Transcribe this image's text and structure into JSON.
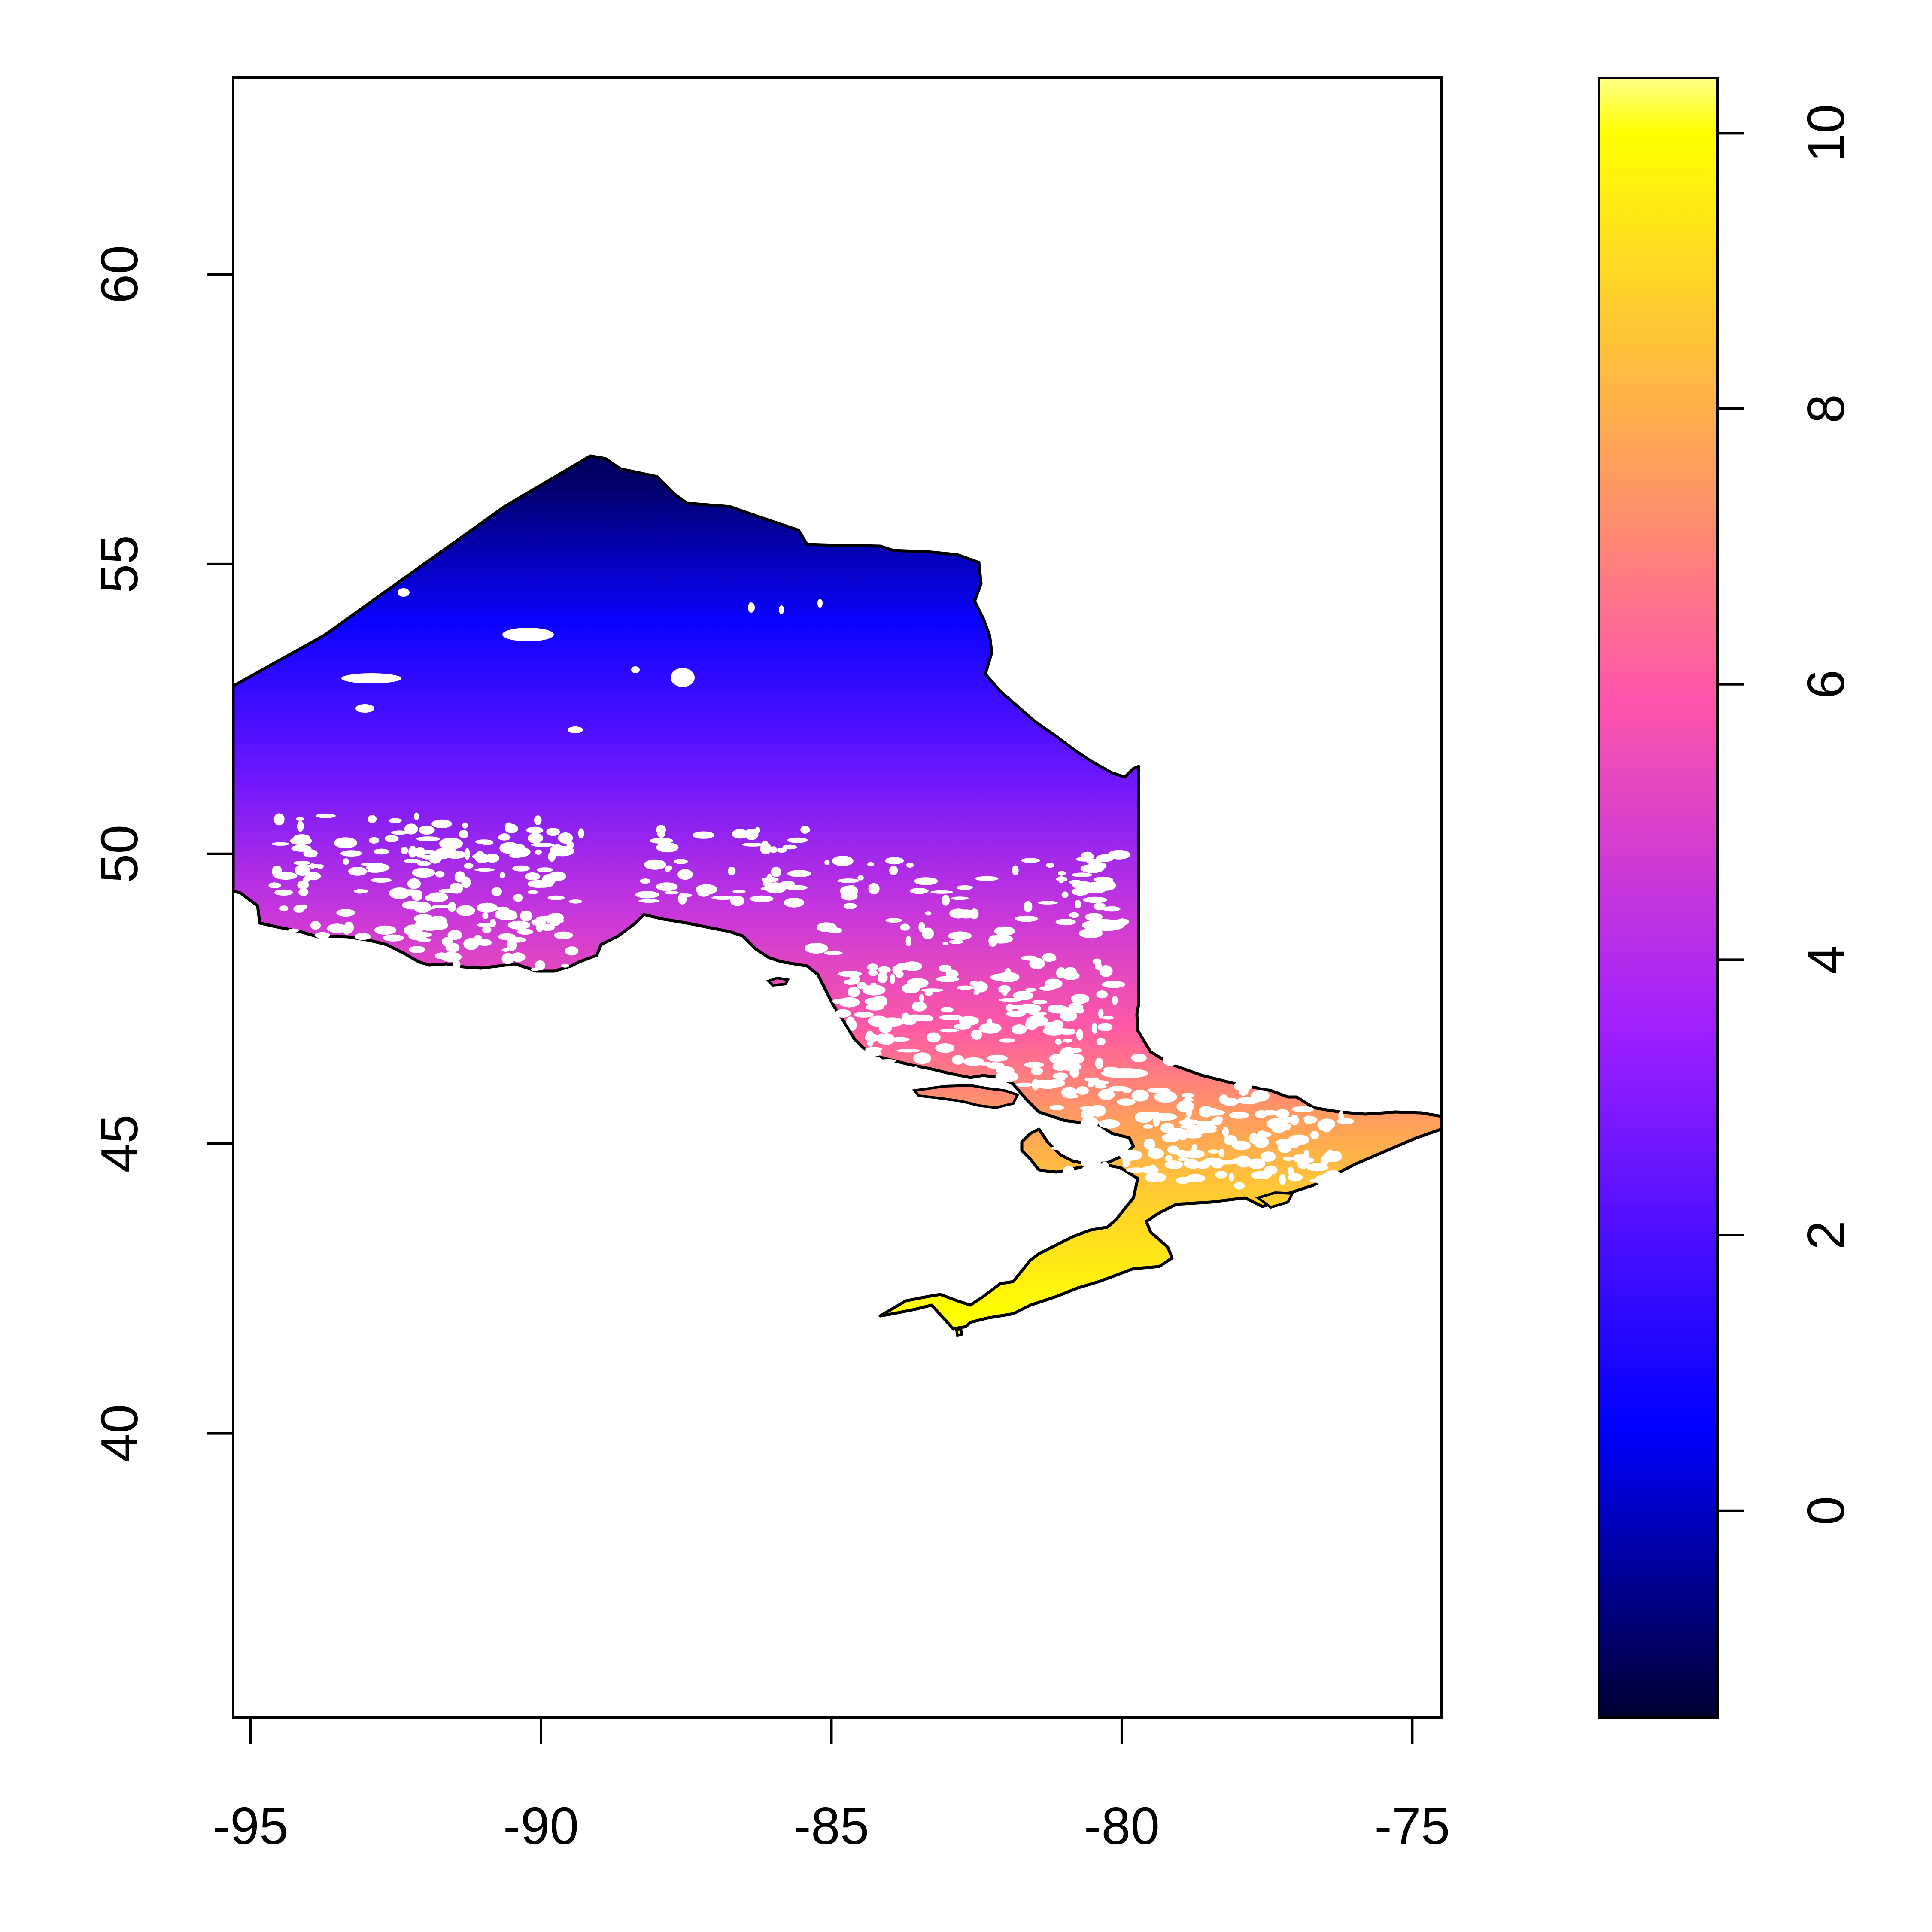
{
  "map": {
    "type": "raster",
    "region": "Ontario, Canada",
    "title": "",
    "xlabel": "",
    "ylabel": "",
    "xlim": [
      -95.3,
      -74.5
    ],
    "ylim": [
      35.1,
      63.4
    ],
    "x_ticks": [
      -95,
      -90,
      -85,
      -80,
      -75
    ],
    "x_tick_labels": [
      "-95",
      "-90",
      "-85",
      "-80",
      "-75"
    ],
    "y_ticks": [
      40,
      45,
      50,
      55,
      60
    ],
    "y_tick_labels": [
      "40",
      "45",
      "50",
      "55",
      "60"
    ],
    "grid": false,
    "legend": {
      "type": "colorbar",
      "placement": "right",
      "range": [
        -1.5,
        10.4
      ],
      "ticks": [
        0,
        2,
        4,
        6,
        8,
        10
      ],
      "tick_labels": [
        "0",
        "2",
        "4",
        "6",
        "8",
        "10"
      ],
      "colors": [
        "#000033",
        "#0000ff",
        "#9f1fff",
        "#ff55aa",
        "#ffb04a",
        "#ffff00",
        "#ffff88"
      ],
      "stops": [
        -1.5,
        0.6,
        3.5,
        5.9,
        8.0,
        10.0,
        10.4
      ]
    },
    "value_gradient": [
      {
        "lat": 56.5,
        "value": -1.0
      },
      {
        "lat": 54.0,
        "value": 0.8
      },
      {
        "lat": 51.5,
        "value": 2.5
      },
      {
        "lat": 49.0,
        "value": 4.5
      },
      {
        "lat": 47.0,
        "value": 6.0
      },
      {
        "lat": 45.5,
        "value": 7.5
      },
      {
        "lat": 44.0,
        "value": 8.8
      },
      {
        "lat": 42.0,
        "value": 10.0
      }
    ],
    "outline_color": "#000000",
    "water_color": "#ffffff"
  }
}
